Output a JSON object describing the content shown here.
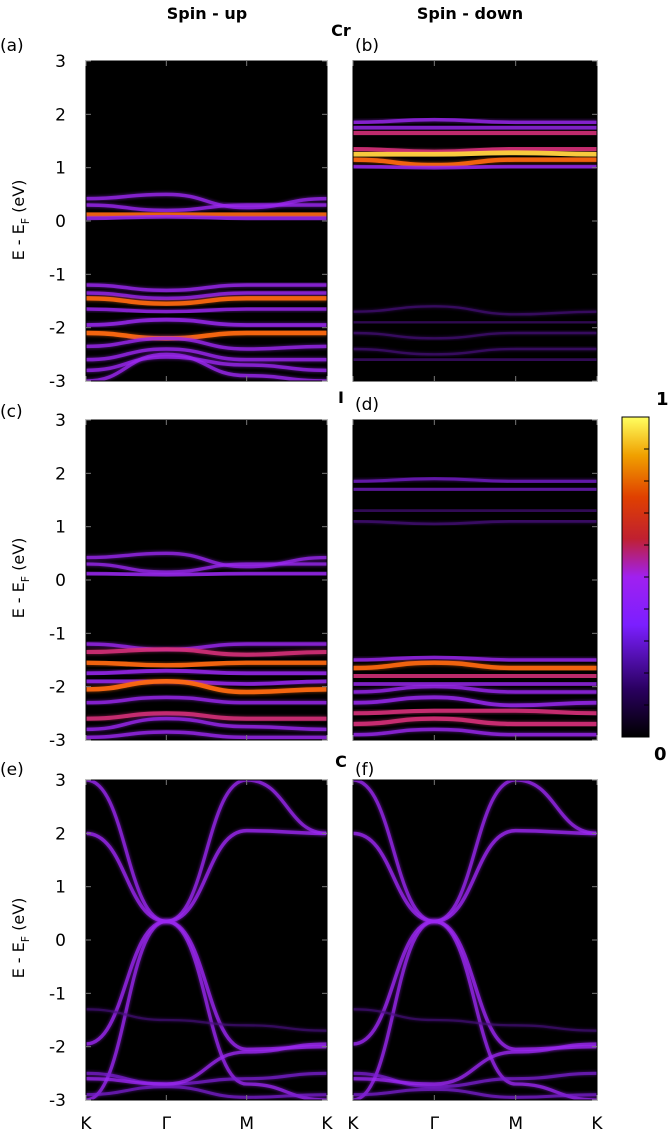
{
  "figure": {
    "column_titles": [
      "Spin - up",
      "Spin - down"
    ],
    "row_titles": [
      "Cr",
      "I",
      "C"
    ],
    "panel_labels": [
      "(a)",
      "(b)",
      "(c)",
      "(d)",
      "(e)",
      "(f)"
    ],
    "ylabel_main": "E - E",
    "ylabel_sub": "F",
    "ylabel_unit": " (eV)",
    "colorbar": {
      "max_label": "1",
      "min_label": "0"
    }
  },
  "colors": {
    "background": "#000000",
    "band_violet": "#8a2be2",
    "band_purple": "#a020f0",
    "band_red": "#d03000",
    "band_yellow": "#ffe040"
  },
  "chart_data": [
    {
      "type": "heatmap",
      "panel": "(a)",
      "element": "Cr",
      "spin": "Spin - up",
      "x_ticks": [
        "K",
        "Γ",
        "M",
        "K"
      ],
      "y_ticks": [
        3,
        2,
        1,
        0,
        -1,
        -2,
        -3
      ],
      "ylim": [
        -3,
        3
      ],
      "bands": [
        {
          "energies": [
            0.42,
            0.5,
            0.25,
            0.42
          ],
          "weight": 0.5
        },
        {
          "energies": [
            0.3,
            0.2,
            0.3,
            0.3
          ],
          "weight": 0.5
        },
        {
          "energies": [
            0.12,
            0.12,
            0.12,
            0.12
          ],
          "weight": 0.8
        },
        {
          "energies": [
            0.05,
            0.08,
            0.05,
            0.05
          ],
          "weight": 0.6
        },
        {
          "energies": [
            -1.2,
            -1.3,
            -1.2,
            -1.2
          ],
          "weight": 0.5
        },
        {
          "energies": [
            -1.35,
            -1.45,
            -1.35,
            -1.35
          ],
          "weight": 0.5
        },
        {
          "energies": [
            -1.45,
            -1.55,
            -1.45,
            -1.45
          ],
          "weight": 0.8
        },
        {
          "energies": [
            -1.65,
            -1.7,
            -1.65,
            -1.65
          ],
          "weight": 0.5
        },
        {
          "energies": [
            -1.95,
            -1.85,
            -1.95,
            -1.95
          ],
          "weight": 0.6
        },
        {
          "energies": [
            -2.1,
            -2.2,
            -2.1,
            -2.1
          ],
          "weight": 0.85
        },
        {
          "energies": [
            -2.35,
            -2.2,
            -2.4,
            -2.35
          ],
          "weight": 0.5
        },
        {
          "energies": [
            -2.6,
            -2.4,
            -2.6,
            -2.6
          ],
          "weight": 0.5
        },
        {
          "energies": [
            -2.8,
            -2.55,
            -2.7,
            -2.8
          ],
          "weight": 0.5
        },
        {
          "energies": [
            -3.0,
            -2.5,
            -2.9,
            -3.0
          ],
          "weight": 0.5
        }
      ]
    },
    {
      "type": "heatmap",
      "panel": "(b)",
      "element": "Cr",
      "spin": "Spin - down",
      "x_ticks": [
        "K",
        "Γ",
        "M",
        "K"
      ],
      "y_ticks": [
        3,
        2,
        1,
        0,
        -1,
        -2,
        -3
      ],
      "ylim": [
        -3,
        3
      ],
      "bands": [
        {
          "energies": [
            1.85,
            1.9,
            1.85,
            1.85
          ],
          "weight": 0.5
        },
        {
          "energies": [
            1.75,
            1.75,
            1.75,
            1.75
          ],
          "weight": 0.6
        },
        {
          "energies": [
            1.65,
            1.65,
            1.65,
            1.65
          ],
          "weight": 0.75
        },
        {
          "energies": [
            1.35,
            1.3,
            1.35,
            1.35
          ],
          "weight": 0.7
        },
        {
          "energies": [
            1.25,
            1.25,
            1.28,
            1.25
          ],
          "weight": 0.9
        },
        {
          "energies": [
            1.15,
            1.05,
            1.15,
            1.15
          ],
          "weight": 0.8
        },
        {
          "energies": [
            1.02,
            1.0,
            1.02,
            1.02
          ],
          "weight": 0.6
        },
        {
          "energies": [
            -1.7,
            -1.6,
            -1.75,
            -1.7
          ],
          "weight": 0.15
        },
        {
          "energies": [
            -1.9,
            -1.9,
            -1.9,
            -1.9
          ],
          "weight": 0.15
        },
        {
          "energies": [
            -2.1,
            -2.2,
            -2.1,
            -2.1
          ],
          "weight": 0.15
        },
        {
          "energies": [
            -2.4,
            -2.5,
            -2.4,
            -2.4
          ],
          "weight": 0.15
        },
        {
          "energies": [
            -2.6,
            -2.6,
            -2.6,
            -2.6
          ],
          "weight": 0.25
        }
      ]
    },
    {
      "type": "heatmap",
      "panel": "(c)",
      "element": "I",
      "spin": "Spin - up",
      "x_ticks": [
        "K",
        "Γ",
        "M",
        "K"
      ],
      "y_ticks": [
        3,
        2,
        1,
        0,
        -1,
        -2,
        -3
      ],
      "ylim": [
        -3,
        3
      ],
      "bands": [
        {
          "energies": [
            0.42,
            0.5,
            0.25,
            0.42
          ],
          "weight": 0.45
        },
        {
          "energies": [
            0.3,
            0.15,
            0.3,
            0.3
          ],
          "weight": 0.45
        },
        {
          "energies": [
            0.12,
            0.1,
            0.12,
            0.12
          ],
          "weight": 0.6
        },
        {
          "energies": [
            -1.2,
            -1.3,
            -1.2,
            -1.2
          ],
          "weight": 0.5
        },
        {
          "energies": [
            -1.35,
            -1.3,
            -1.4,
            -1.35
          ],
          "weight": 0.7
        },
        {
          "energies": [
            -1.55,
            -1.6,
            -1.55,
            -1.55
          ],
          "weight": 0.8
        },
        {
          "energies": [
            -1.75,
            -1.7,
            -1.75,
            -1.75
          ],
          "weight": 0.6
        },
        {
          "energies": [
            -1.9,
            -1.9,
            -1.95,
            -1.9
          ],
          "weight": 0.6
        },
        {
          "energies": [
            -2.05,
            -1.9,
            -2.1,
            -2.05
          ],
          "weight": 0.85
        },
        {
          "energies": [
            -2.3,
            -2.2,
            -2.3,
            -2.3
          ],
          "weight": 0.5
        },
        {
          "energies": [
            -2.6,
            -2.5,
            -2.6,
            -2.6
          ],
          "weight": 0.7
        },
        {
          "energies": [
            -2.8,
            -2.6,
            -2.75,
            -2.8
          ],
          "weight": 0.5
        },
        {
          "energies": [
            -2.95,
            -2.85,
            -2.95,
            -2.95
          ],
          "weight": 0.5
        }
      ]
    },
    {
      "type": "heatmap",
      "panel": "(d)",
      "element": "I",
      "spin": "Spin - down",
      "x_ticks": [
        "K",
        "Γ",
        "M",
        "K"
      ],
      "y_ticks": [
        3,
        2,
        1,
        0,
        -1,
        -2,
        -3
      ],
      "ylim": [
        -3,
        3
      ],
      "bands": [
        {
          "energies": [
            1.85,
            1.9,
            1.85,
            1.85
          ],
          "weight": 0.35
        },
        {
          "energies": [
            1.7,
            1.7,
            1.7,
            1.7
          ],
          "weight": 0.4
        },
        {
          "energies": [
            1.3,
            1.3,
            1.3,
            1.3
          ],
          "weight": 0.25
        },
        {
          "energies": [
            1.1,
            1.05,
            1.1,
            1.1
          ],
          "weight": 0.25
        },
        {
          "energies": [
            -1.5,
            -1.45,
            -1.5,
            -1.5
          ],
          "weight": 0.5
        },
        {
          "energies": [
            -1.65,
            -1.55,
            -1.65,
            -1.65
          ],
          "weight": 0.8
        },
        {
          "energies": [
            -1.8,
            -1.8,
            -1.8,
            -1.8
          ],
          "weight": 0.7
        },
        {
          "energies": [
            -1.95,
            -1.95,
            -1.95,
            -1.95
          ],
          "weight": 0.6
        },
        {
          "energies": [
            -2.1,
            -2.0,
            -2.1,
            -2.1
          ],
          "weight": 0.5
        },
        {
          "energies": [
            -2.3,
            -2.2,
            -2.35,
            -2.3
          ],
          "weight": 0.6
        },
        {
          "energies": [
            -2.5,
            -2.45,
            -2.45,
            -2.5
          ],
          "weight": 0.7
        },
        {
          "energies": [
            -2.7,
            -2.6,
            -2.7,
            -2.7
          ],
          "weight": 0.75
        },
        {
          "energies": [
            -2.9,
            -2.8,
            -2.9,
            -2.9
          ],
          "weight": 0.5
        }
      ]
    },
    {
      "type": "heatmap",
      "panel": "(e)",
      "element": "C",
      "spin": "Spin - up",
      "x_ticks": [
        "K",
        "Γ",
        "M",
        "K"
      ],
      "y_ticks": [
        3,
        2,
        1,
        0,
        -1,
        -2,
        -3
      ],
      "ylim": [
        -3,
        3
      ],
      "bands": [
        {
          "energies": [
            2.0,
            0.35,
            -2.05,
            -2.0
          ],
          "weight": 0.5
        },
        {
          "energies": [
            -1.95,
            0.35,
            2.05,
            2.0
          ],
          "weight": 0.5
        },
        {
          "energies": [
            3.0,
            0.35,
            -2.7,
            -3.0
          ],
          "weight": 0.45
        },
        {
          "energies": [
            -3.0,
            0.35,
            3.0,
            2.0
          ],
          "weight": 0.45
        },
        {
          "energies": [
            -2.5,
            -2.7,
            -2.6,
            -2.5
          ],
          "weight": 0.4
        },
        {
          "energies": [
            -2.9,
            -2.75,
            -2.95,
            -2.9
          ],
          "weight": 0.35
        },
        {
          "energies": [
            -1.3,
            -1.5,
            -1.6,
            -1.7
          ],
          "weight": 0.1
        },
        {
          "energies": [
            -2.6,
            -2.7,
            -2.1,
            -1.95
          ],
          "weight": 0.45
        }
      ]
    },
    {
      "type": "heatmap",
      "panel": "(f)",
      "element": "C",
      "spin": "Spin - down",
      "x_ticks": [
        "K",
        "Γ",
        "M",
        "K"
      ],
      "y_ticks": [
        3,
        2,
        1,
        0,
        -1,
        -2,
        -3
      ],
      "ylim": [
        -3,
        3
      ],
      "bands": [
        {
          "energies": [
            2.0,
            0.35,
            -2.05,
            -2.0
          ],
          "weight": 0.5
        },
        {
          "energies": [
            -1.95,
            0.35,
            2.05,
            2.0
          ],
          "weight": 0.5
        },
        {
          "energies": [
            3.0,
            0.35,
            -2.7,
            -3.0
          ],
          "weight": 0.45
        },
        {
          "energies": [
            -3.0,
            0.35,
            3.0,
            2.0
          ],
          "weight": 0.45
        },
        {
          "energies": [
            -2.5,
            -2.75,
            -2.6,
            -2.5
          ],
          "weight": 0.4
        },
        {
          "energies": [
            -2.9,
            -2.8,
            -2.95,
            -2.9
          ],
          "weight": 0.35
        },
        {
          "energies": [
            -1.3,
            -1.5,
            -1.6,
            -1.7
          ],
          "weight": 0.1
        },
        {
          "energies": [
            -2.6,
            -2.7,
            -2.1,
            -1.95
          ],
          "weight": 0.45
        }
      ]
    }
  ]
}
